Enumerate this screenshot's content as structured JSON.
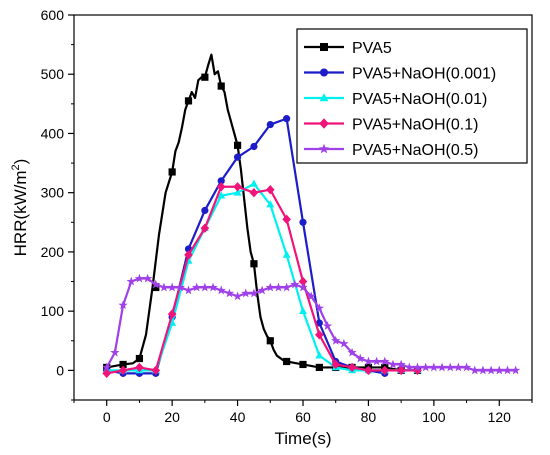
{
  "chart_data": {
    "type": "line",
    "title": "",
    "xlabel": "Time(s)",
    "ylabel": "HRR(kW/m",
    "ylabel_superscript": "2",
    "ylabel_suffix": ")",
    "xlim": [
      -10,
      130
    ],
    "ylim": [
      -50,
      600
    ],
    "xticks": [
      0,
      20,
      40,
      60,
      80,
      100,
      120
    ],
    "yticks": [
      0,
      100,
      200,
      300,
      400,
      500,
      600
    ],
    "legend_position": "top-right",
    "grid": false,
    "series": [
      {
        "name": "PVA5",
        "color": "#000000",
        "marker": "square",
        "x": [
          0,
          5,
          10,
          15,
          20,
          25,
          30,
          35,
          40,
          45,
          50,
          55,
          60,
          65,
          70,
          75,
          80,
          85,
          90,
          95
        ],
        "y": [
          5,
          10,
          20,
          140,
          335,
          455,
          495,
          480,
          380,
          180,
          50,
          15,
          10,
          5,
          5,
          5,
          5,
          5,
          0,
          0
        ],
        "line_x": [
          0,
          5,
          8,
          10,
          12,
          14,
          16,
          18,
          20,
          21,
          22,
          23,
          24,
          25,
          26,
          27,
          28,
          29,
          30,
          31,
          32,
          33,
          34,
          35,
          36,
          37,
          38,
          39,
          40,
          41,
          42,
          43,
          44,
          45,
          46,
          47,
          48,
          49,
          50,
          51,
          52,
          54,
          56,
          60,
          65,
          70,
          75,
          80,
          85,
          90,
          95
        ],
        "line_y": [
          5,
          10,
          12,
          20,
          60,
          140,
          230,
          300,
          335,
          370,
          385,
          410,
          440,
          455,
          470,
          460,
          490,
          495,
          495,
          515,
          533,
          500,
          505,
          480,
          470,
          440,
          420,
          400,
          380,
          340,
          290,
          240,
          200,
          180,
          130,
          90,
          70,
          58,
          50,
          35,
          25,
          17,
          14,
          10,
          5,
          5,
          5,
          5,
          5,
          0,
          0
        ]
      },
      {
        "name": "PVA5+NaOH(0.001)",
        "color": "#1c1cc8",
        "marker": "circle",
        "x": [
          0,
          5,
          10,
          15,
          20,
          25,
          30,
          35,
          40,
          45,
          50,
          55,
          60,
          65,
          70,
          75,
          80,
          85
        ],
        "y": [
          0,
          -5,
          -5,
          -5,
          90,
          205,
          270,
          320,
          360,
          378,
          415,
          425,
          250,
          80,
          15,
          5,
          0,
          -5
        ],
        "line_x": [
          0,
          5,
          10,
          15,
          20,
          25,
          30,
          35,
          40,
          45,
          50,
          55,
          60,
          65,
          70,
          75,
          80,
          85
        ],
        "line_y": [
          0,
          -5,
          -5,
          -5,
          90,
          205,
          270,
          320,
          360,
          378,
          415,
          425,
          250,
          80,
          15,
          5,
          0,
          -5
        ]
      },
      {
        "name": "PVA5+NaOH(0.01)",
        "color": "#00f0f0",
        "marker": "triangle",
        "x": [
          0,
          5,
          10,
          15,
          20,
          25,
          30,
          35,
          40,
          45,
          50,
          55,
          60,
          65,
          70,
          75,
          80,
          85,
          90,
          95
        ],
        "y": [
          0,
          0,
          0,
          0,
          80,
          185,
          240,
          295,
          300,
          315,
          280,
          195,
          100,
          25,
          5,
          0,
          0,
          0,
          0,
          0
        ],
        "line_x": [
          0,
          5,
          10,
          15,
          20,
          25,
          30,
          35,
          40,
          45,
          50,
          55,
          60,
          65,
          70,
          75,
          80,
          85,
          90,
          95
        ],
        "line_y": [
          0,
          0,
          0,
          0,
          80,
          185,
          240,
          295,
          300,
          315,
          280,
          195,
          100,
          25,
          5,
          0,
          0,
          0,
          0,
          0
        ]
      },
      {
        "name": "PVA5+NaOH(0.1)",
        "color": "#f0147a",
        "marker": "diamond",
        "x": [
          0,
          5,
          10,
          15,
          20,
          25,
          30,
          35,
          40,
          45,
          50,
          55,
          60,
          65,
          70,
          75,
          80,
          85,
          90,
          95
        ],
        "y": [
          -5,
          0,
          5,
          0,
          95,
          195,
          240,
          310,
          310,
          300,
          305,
          255,
          150,
          60,
          10,
          5,
          0,
          0,
          0,
          0
        ],
        "line_x": [
          0,
          5,
          10,
          15,
          20,
          25,
          30,
          35,
          40,
          45,
          50,
          55,
          60,
          65,
          70,
          75,
          80,
          85,
          90,
          95
        ],
        "line_y": [
          -5,
          0,
          5,
          0,
          95,
          195,
          240,
          310,
          310,
          300,
          305,
          255,
          150,
          60,
          10,
          5,
          0,
          0,
          0,
          0
        ]
      },
      {
        "name": "PVA5+NaOH(0.5)",
        "color": "#a040e8",
        "marker": "star",
        "x": [
          0,
          2.5,
          5,
          7.5,
          10,
          12.5,
          15,
          17.5,
          20,
          22.5,
          25,
          27.5,
          30,
          32.5,
          35,
          37.5,
          40,
          42.5,
          45,
          47.5,
          50,
          52.5,
          55,
          57.5,
          60,
          62.5,
          65,
          67.5,
          70,
          72.5,
          75,
          77.5,
          80,
          82.5,
          85,
          87.5,
          90,
          92.5,
          95,
          97.5,
          100,
          102.5,
          105,
          107.5,
          110,
          112.5,
          115,
          117.5,
          120,
          122.5,
          125
        ],
        "y": [
          5,
          30,
          110,
          150,
          155,
          155,
          145,
          140,
          140,
          140,
          135,
          140,
          140,
          140,
          135,
          130,
          125,
          130,
          130,
          135,
          140,
          140,
          140,
          145,
          140,
          125,
          105,
          75,
          50,
          45,
          30,
          20,
          15,
          15,
          15,
          10,
          10,
          5,
          5,
          5,
          5,
          5,
          5,
          5,
          5,
          0,
          0,
          0,
          0,
          0,
          0
        ]
      }
    ]
  }
}
